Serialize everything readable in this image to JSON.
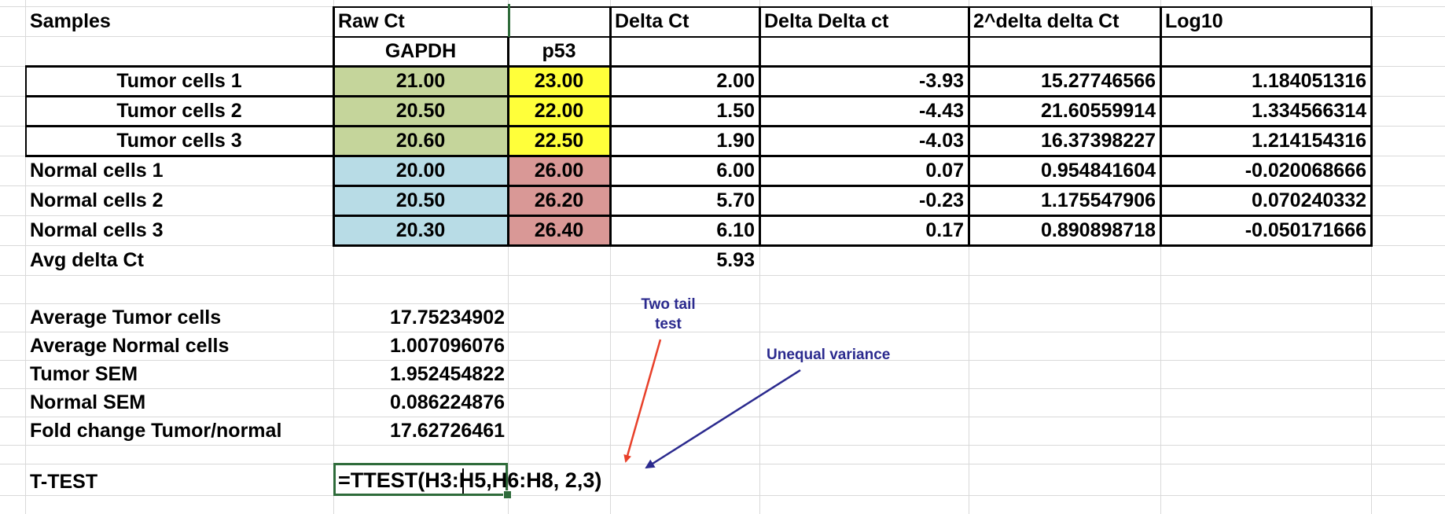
{
  "header": {
    "samples": "Samples",
    "raw_ct": "Raw Ct",
    "delta_ct": "Delta Ct",
    "delta_delta_ct": "Delta Delta ct",
    "pow_delta_delta_ct": "2^delta delta Ct",
    "log10": "Log10",
    "gapdh": "GAPDH",
    "p53": "p53"
  },
  "rows": [
    {
      "sample": "Tumor cells 1",
      "gapdh": "21.00",
      "p53": "23.00",
      "delta": "2.00",
      "dd": "-3.93",
      "pow": "15.27746566",
      "log": "1.184051316"
    },
    {
      "sample": "Tumor cells 2",
      "gapdh": "20.50",
      "p53": "22.00",
      "delta": "1.50",
      "dd": "-4.43",
      "pow": "21.60559914",
      "log": "1.334566314"
    },
    {
      "sample": "Tumor cells 3",
      "gapdh": "20.60",
      "p53": "22.50",
      "delta": "1.90",
      "dd": "-4.03",
      "pow": "16.37398227",
      "log": "1.214154316"
    },
    {
      "sample": "Normal cells 1",
      "gapdh": "20.00",
      "p53": "26.00",
      "delta": "6.00",
      "dd": "0.07",
      "pow": "0.954841604",
      "log": "-0.020068666"
    },
    {
      "sample": "Normal cells 2",
      "gapdh": "20.50",
      "p53": "26.20",
      "delta": "5.70",
      "dd": "-0.23",
      "pow": "1.175547906",
      "log": "0.070240332"
    },
    {
      "sample": "Normal cells 3",
      "gapdh": "20.30",
      "p53": "26.40",
      "delta": "6.10",
      "dd": "0.17",
      "pow": "0.890898718",
      "log": "-0.050171666"
    }
  ],
  "avg": {
    "label": "Avg delta Ct",
    "value": "5.93"
  },
  "stats": [
    {
      "label": "Average Tumor cells",
      "value": "17.75234902"
    },
    {
      "label": "Average Normal cells",
      "value": "1.007096076"
    },
    {
      "label": "Tumor SEM",
      "value": "1.952454822"
    },
    {
      "label": "Normal SEM",
      "value": "0.086224876"
    },
    {
      "label": "Fold change Tumor/normal",
      "value": "17.62726461"
    }
  ],
  "ttest": {
    "label": "T-TEST",
    "formula": "=TTEST(H3:H5,H6:H8, 2,3)"
  },
  "annotations": {
    "two_tail_line1": "Two tail",
    "two_tail_line2": "test",
    "unequal_variance": "Unequal variance"
  },
  "colors": {
    "gapdh_tumor": "#c5d59b",
    "p53_tumor": "#ffff3a",
    "gapdh_normal": "#b8dce6",
    "p53_normal": "#d99896",
    "arrow_red": "#e8402a",
    "arrow_blue": "#2b2a8e",
    "selection": "#2e6b3a"
  }
}
